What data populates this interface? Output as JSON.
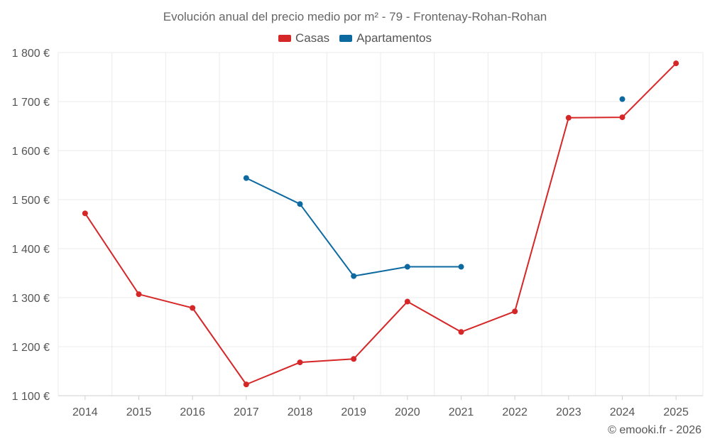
{
  "chart_data": {
    "type": "line",
    "title": "Evolución anual del precio medio por m² - 79 - Frontenay-Rohan-Rohan",
    "categories": [
      "2014",
      "2015",
      "2016",
      "2017",
      "2018",
      "2019",
      "2020",
      "2021",
      "2022",
      "2023",
      "2024",
      "2025"
    ],
    "ylim": [
      1100,
      1800
    ],
    "yticks": [
      1100,
      1200,
      1300,
      1400,
      1500,
      1600,
      1700,
      1800
    ],
    "ytick_labels": [
      "1 100 €",
      "1 200 €",
      "1 300 €",
      "1 400 €",
      "1 500 €",
      "1 600 €",
      "1 700 €",
      "1 800 €"
    ],
    "xlabel": "",
    "ylabel": "",
    "grid": true,
    "legend_position": "top-center",
    "series": [
      {
        "name": "Casas",
        "color": "#d62728",
        "values": [
          1472,
          1307,
          1279,
          1123,
          1168,
          1175,
          1292,
          1230,
          1272,
          1667,
          1668,
          1778
        ]
      },
      {
        "name": "Apartamentos",
        "color": "#0d6aa0",
        "values": [
          null,
          null,
          null,
          1544,
          1491,
          1344,
          1363,
          1363,
          null,
          null,
          1705,
          null
        ]
      }
    ]
  },
  "credit": "© emooki.fr - 2026"
}
